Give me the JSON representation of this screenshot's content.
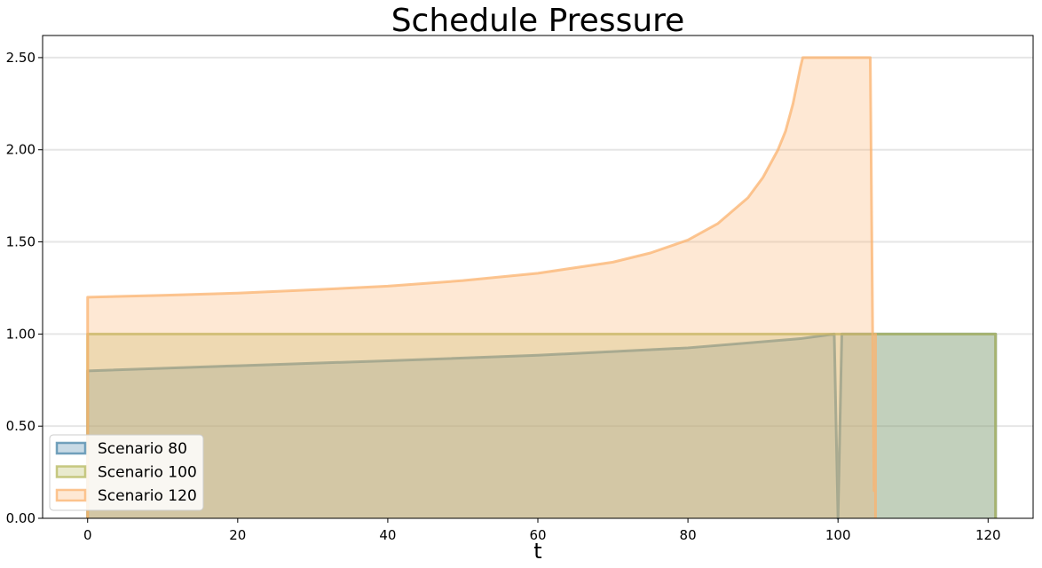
{
  "chart_data": {
    "type": "area",
    "title": "Schedule Pressure",
    "xlabel": "t",
    "ylabel": "",
    "xlim": [
      -6,
      126
    ],
    "ylim": [
      0,
      2.62
    ],
    "xticks": [
      0,
      20,
      40,
      60,
      80,
      100,
      120
    ],
    "yticks": [
      0.0,
      0.5,
      1.0,
      1.5,
      2.0,
      2.5
    ],
    "xtick_labels": [
      "0",
      "20",
      "40",
      "60",
      "80",
      "100",
      "120"
    ],
    "ytick_labels": [
      "0.00",
      "0.50",
      "1.00",
      "1.50",
      "2.00",
      "2.50"
    ],
    "grid": "horizontal",
    "legend_position": "lower-left",
    "series": [
      {
        "name": "Scenario 80",
        "color": "#4a86a8",
        "x": [
          0,
          20,
          40,
          60,
          80,
          95,
          99.5,
          100,
          100.5,
          121
        ],
        "y": [
          0.8,
          0.828,
          0.855,
          0.885,
          0.925,
          0.975,
          1.0,
          0.0,
          1.0,
          1.0
        ]
      },
      {
        "name": "Scenario 100",
        "color": "#b5b85e",
        "x": [
          0,
          40,
          80,
          104,
          121
        ],
        "y": [
          1.0,
          1.0,
          1.0,
          1.0,
          1.0
        ]
      },
      {
        "name": "Scenario 120",
        "color": "#fbb36f",
        "x": [
          0,
          10,
          20,
          30,
          40,
          50,
          60,
          70,
          75,
          80,
          84,
          88,
          90,
          92,
          93,
          94,
          95,
          95.3,
          104.3,
          104.8,
          105
        ],
        "y": [
          1.2,
          1.21,
          1.222,
          1.24,
          1.26,
          1.29,
          1.33,
          1.39,
          1.44,
          1.51,
          1.6,
          1.74,
          1.85,
          2.0,
          2.1,
          2.25,
          2.45,
          2.5,
          2.5,
          0.15,
          1.0
        ]
      }
    ]
  }
}
